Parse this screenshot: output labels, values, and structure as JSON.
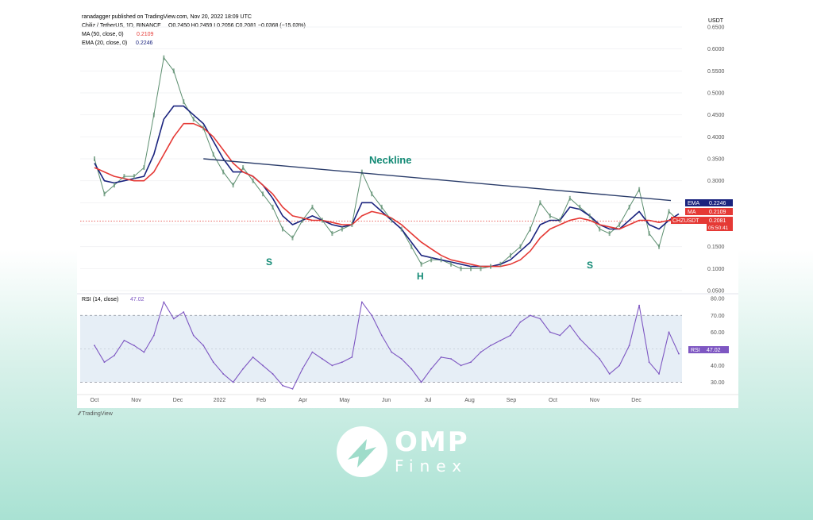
{
  "header": {
    "publisher": "ranadagger published on TradingView.com, Nov 20, 2022 18:09 UTC",
    "symbol_line": "Chiliz / TetherUS, 1D, BINANCE",
    "ohlc": "O0.2450  H0.2459  L0.2056  C0.2081  −0.0368 (−15.03%)",
    "ma_line": "MA (50, close, 0)",
    "ma_value": "0.2109",
    "ema_line": "EMA (20, close, 0)",
    "ema_value": "0.2246",
    "currency": "USDT"
  },
  "annotations": {
    "neckline": "Neckline",
    "left_shoulder": "S",
    "head": "H",
    "right_shoulder": "S"
  },
  "badges": {
    "ema_label": "EMA",
    "ema_value": "0.2246",
    "ma_label": "MA",
    "ma_value": "0.2109",
    "price_label": "CHZUSDT",
    "price_value": "0.2081",
    "countdown": "05:50:41",
    "rsi_label": "RSI",
    "rsi_value": "47.02"
  },
  "rsi_panel": {
    "title": "RSI (14, close)",
    "value": "47.02"
  },
  "footer": {
    "tradingview": "TradingView"
  },
  "brand": {
    "name": "OMP",
    "sub": "Finex"
  },
  "colors": {
    "price_line": "#5c8e6f",
    "ema": "#1a237e",
    "ma": "#e53935",
    "neckline": "#2c3e6b",
    "label_teal": "#138a75",
    "rsi_line": "#7e57c2",
    "rsi_band": "#dbe7f2"
  },
  "chart_data": [
    {
      "type": "line",
      "title": "Chiliz / TetherUS, 1D, BINANCE",
      "x_ticks": [
        "Oct",
        "Nov",
        "Dec",
        "2022",
        "Feb",
        "Apr",
        "May",
        "Jun",
        "Jul",
        "Aug",
        "Sep",
        "Oct",
        "Nov",
        "Dec"
      ],
      "y_ticks": [
        "0.6500",
        "0.6000",
        "0.5500",
        "0.5000",
        "0.4500",
        "0.4000",
        "0.3500",
        "0.3000",
        "0.2500",
        "0.2000",
        "0.1500",
        "0.1000",
        "0.0500"
      ],
      "ylim": [
        0.05,
        0.65
      ],
      "x": [
        "Sep-20",
        "Sep-28",
        "Oct-06",
        "Oct-14",
        "Oct-22",
        "Oct-30",
        "Nov-04",
        "Nov-09",
        "Nov-14",
        "Nov-20",
        "Nov-26",
        "Dec-02",
        "Dec-08",
        "Dec-14",
        "Dec-20",
        "Dec-28",
        "Jan-05",
        "Jan-13",
        "Jan-21",
        "Jan-29",
        "Feb-06",
        "Feb-14",
        "Feb-22",
        "Mar-02",
        "Mar-10",
        "Mar-18",
        "Mar-26",
        "Apr-01",
        "Apr-06",
        "Apr-12",
        "Apr-20",
        "Apr-28",
        "May-06",
        "May-14",
        "May-22",
        "May-30",
        "Jun-07",
        "Jun-15",
        "Jun-23",
        "Jul-01",
        "Jul-09",
        "Jul-17",
        "Jul-25",
        "Aug-02",
        "Aug-10",
        "Aug-18",
        "Aug-26",
        "Sep-03",
        "Sep-11",
        "Sep-19",
        "Sep-27",
        "Oct-05",
        "Oct-13",
        "Oct-21",
        "Oct-29",
        "Nov-04",
        "Nov-08",
        "Nov-12",
        "Nov-16",
        "Nov-20"
      ],
      "series": [
        {
          "name": "CHZUSDT",
          "values": [
            0.35,
            0.27,
            0.29,
            0.31,
            0.31,
            0.33,
            0.45,
            0.58,
            0.55,
            0.48,
            0.44,
            0.42,
            0.36,
            0.32,
            0.29,
            0.33,
            0.3,
            0.27,
            0.24,
            0.19,
            0.17,
            0.21,
            0.24,
            0.21,
            0.18,
            0.19,
            0.2,
            0.32,
            0.27,
            0.24,
            0.21,
            0.19,
            0.15,
            0.11,
            0.12,
            0.12,
            0.11,
            0.1,
            0.1,
            0.1,
            0.105,
            0.11,
            0.13,
            0.15,
            0.19,
            0.25,
            0.22,
            0.21,
            0.26,
            0.24,
            0.22,
            0.19,
            0.18,
            0.2,
            0.24,
            0.28,
            0.18,
            0.15,
            0.23,
            0.208
          ]
        },
        {
          "name": "EMA",
          "values": [
            0.34,
            0.3,
            0.295,
            0.3,
            0.305,
            0.31,
            0.36,
            0.44,
            0.47,
            0.47,
            0.45,
            0.43,
            0.39,
            0.35,
            0.32,
            0.32,
            0.31,
            0.29,
            0.26,
            0.22,
            0.2,
            0.21,
            0.22,
            0.21,
            0.2,
            0.195,
            0.2,
            0.25,
            0.25,
            0.23,
            0.21,
            0.19,
            0.16,
            0.13,
            0.125,
            0.12,
            0.115,
            0.11,
            0.105,
            0.105,
            0.105,
            0.11,
            0.12,
            0.14,
            0.16,
            0.2,
            0.21,
            0.21,
            0.24,
            0.235,
            0.22,
            0.2,
            0.19,
            0.19,
            0.21,
            0.23,
            0.2,
            0.19,
            0.21,
            0.2246
          ]
        },
        {
          "name": "MA",
          "values": [
            0.33,
            0.32,
            0.31,
            0.305,
            0.3,
            0.3,
            0.32,
            0.36,
            0.4,
            0.43,
            0.43,
            0.42,
            0.4,
            0.37,
            0.34,
            0.32,
            0.31,
            0.29,
            0.27,
            0.24,
            0.22,
            0.215,
            0.21,
            0.21,
            0.205,
            0.2,
            0.2,
            0.22,
            0.23,
            0.225,
            0.215,
            0.2,
            0.18,
            0.16,
            0.145,
            0.13,
            0.12,
            0.115,
            0.11,
            0.105,
            0.105,
            0.105,
            0.11,
            0.12,
            0.14,
            0.17,
            0.19,
            0.2,
            0.21,
            0.215,
            0.21,
            0.2,
            0.195,
            0.19,
            0.2,
            0.21,
            0.21,
            0.205,
            0.21,
            0.2109
          ]
        }
      ],
      "neckline": [
        {
          "x": "Dec-05",
          "y": 0.35
        },
        {
          "x": "Nov-20",
          "y": 0.255
        }
      ]
    },
    {
      "type": "line",
      "title": "RSI (14, close)",
      "y_ticks": [
        "80.00",
        "70.00",
        "60.00",
        "50.00",
        "40.00",
        "30.00"
      ],
      "ylim": [
        25,
        82
      ],
      "bands": [
        30,
        70
      ],
      "series": [
        {
          "name": "RSI",
          "values": [
            52,
            42,
            46,
            55,
            52,
            48,
            58,
            78,
            68,
            72,
            58,
            52,
            42,
            35,
            30,
            38,
            45,
            40,
            35,
            28,
            26,
            38,
            48,
            44,
            40,
            42,
            45,
            78,
            70,
            58,
            48,
            44,
            38,
            30,
            38,
            45,
            44,
            40,
            42,
            48,
            52,
            55,
            58,
            66,
            70,
            68,
            60,
            58,
            64,
            56,
            50,
            44,
            35,
            40,
            52,
            76,
            42,
            35,
            60,
            47
          ]
        }
      ]
    }
  ]
}
